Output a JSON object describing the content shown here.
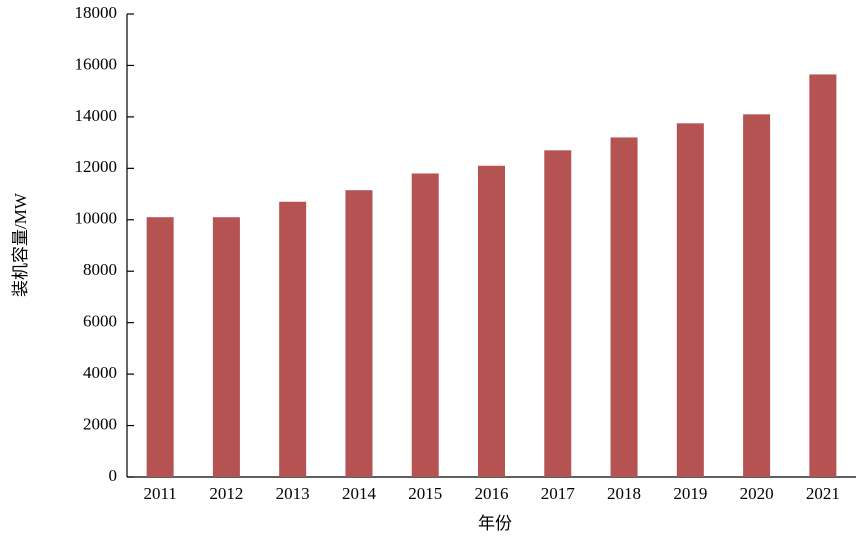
{
  "chart_data": {
    "type": "bar",
    "x_label": "年份",
    "y_label": "装机容量/MW",
    "categories": [
      "2011",
      "2012",
      "2013",
      "2014",
      "2015",
      "2016",
      "2017",
      "2018",
      "2019",
      "2020",
      "2021"
    ],
    "values": [
      10100,
      10100,
      10700,
      11150,
      11800,
      12100,
      12700,
      13200,
      13750,
      14100,
      15650
    ],
    "color": "#b55252",
    "ylim": [
      0,
      18000
    ],
    "yticks": [
      0,
      2000,
      4000,
      6000,
      8000,
      10000,
      12000,
      14000,
      16000,
      18000
    ],
    "grid": false
  }
}
